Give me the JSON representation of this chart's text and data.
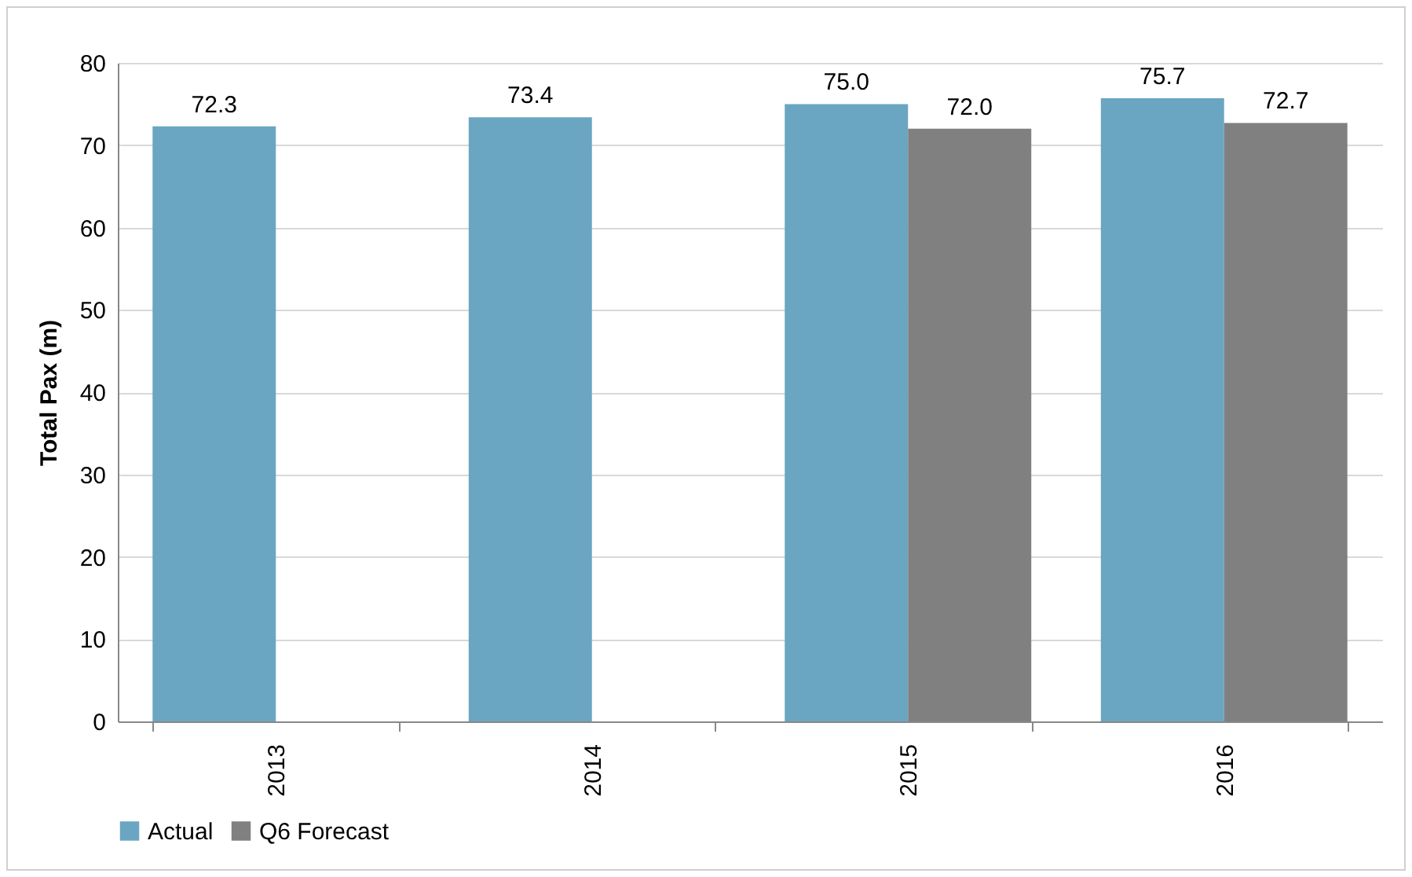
{
  "chart_data": {
    "type": "bar",
    "ylabel": "Total Pax (m)",
    "categories": [
      "2013",
      "2014",
      "2015",
      "2016"
    ],
    "series": [
      {
        "name": "Actual",
        "color": "#6aa6c2",
        "values": [
          72.3,
          73.4,
          75.0,
          75.7
        ],
        "value_labels": [
          "72.3",
          "73.4",
          "75.0",
          "75.7"
        ]
      },
      {
        "name": "Q6 Forecast",
        "color": "#808080",
        "values": [
          null,
          null,
          72.0,
          72.7
        ],
        "value_labels": [
          null,
          null,
          "72.0",
          "72.7"
        ]
      }
    ],
    "ylim": [
      0,
      80
    ],
    "yticks": [
      0,
      10,
      20,
      30,
      40,
      50,
      60,
      70,
      80
    ],
    "grid": "y",
    "legend": "bottom"
  }
}
